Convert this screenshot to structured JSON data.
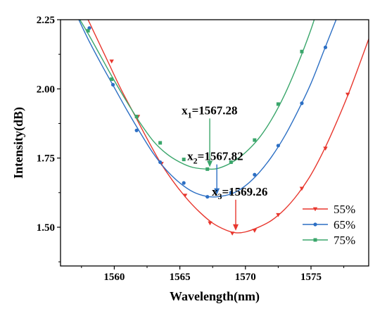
{
  "chart_data": {
    "type": "line",
    "xlabel": "Wavelength(nm)",
    "ylabel": "Intensity(dB)",
    "xlim": [
      1555.9,
      1579.4
    ],
    "ylim": [
      1.36,
      2.25
    ],
    "xticks": [
      {
        "value": 1560,
        "label": "1560"
      },
      {
        "value": 1565,
        "label": "1565"
      },
      {
        "value": 1570,
        "label": "1570"
      },
      {
        "value": 1575,
        "label": "1575"
      }
    ],
    "yticks": [
      {
        "value": 1.5,
        "label": "1.50"
      },
      {
        "value": 1.75,
        "label": "1.75"
      },
      {
        "value": 2.0,
        "label": "2.00"
      },
      {
        "value": 2.25,
        "label": "2.25"
      }
    ],
    "legend_position": "lower-right",
    "series": [
      {
        "name": "55%",
        "color": "#e8372e",
        "marker": "triangle-down",
        "minimum": {
          "x": 1569.26,
          "y": 1.48
        },
        "x": [
          1557.5,
          1558.5,
          1559.5,
          1560.5,
          1561.5,
          1562.5,
          1563.5,
          1564.5,
          1565.5,
          1566.5,
          1567.5,
          1568.5,
          1569.26,
          1570,
          1571,
          1572,
          1573,
          1574,
          1575,
          1576,
          1577,
          1578,
          1579.4
        ],
        "y": [
          2.3,
          2.2,
          2.1,
          2.0,
          1.91,
          1.82,
          1.735,
          1.665,
          1.605,
          1.555,
          1.515,
          1.49,
          1.48,
          1.483,
          1.5,
          1.525,
          1.565,
          1.62,
          1.69,
          1.78,
          1.885,
          2.0,
          2.18
        ],
        "markers_x": [
          1559.8,
          1561.8,
          1563.6,
          1565.4,
          1567.3,
          1569,
          1570.7,
          1572.5,
          1574.3,
          1576.1,
          1577.8
        ],
        "markers_y": [
          2.1,
          1.9,
          1.73,
          1.615,
          1.515,
          1.478,
          1.488,
          1.545,
          1.64,
          1.785,
          1.98
        ]
      },
      {
        "name": "65%",
        "color": "#2c6fc4",
        "marker": "circle",
        "minimum": {
          "x": 1567.82,
          "y": 1.61
        },
        "x": [
          1557,
          1558,
          1559,
          1560,
          1561,
          1562,
          1563,
          1564,
          1565,
          1566,
          1567,
          1567.82,
          1569,
          1570,
          1571,
          1572,
          1573,
          1574,
          1575,
          1576,
          1577,
          1577.6
        ],
        "y": [
          2.28,
          2.18,
          2.09,
          2.005,
          1.92,
          1.84,
          1.765,
          1.705,
          1.66,
          1.628,
          1.612,
          1.61,
          1.622,
          1.65,
          1.695,
          1.755,
          1.83,
          1.92,
          2.02,
          2.14,
          2.26,
          2.33
        ],
        "markers_x": [
          1558.1,
          1559.9,
          1561.7,
          1563.5,
          1565.3,
          1567.1,
          1568.9,
          1570.7,
          1572.5,
          1574.3,
          1576.1
        ],
        "markers_y": [
          2.22,
          2.015,
          1.85,
          1.735,
          1.66,
          1.61,
          1.625,
          1.69,
          1.795,
          1.948,
          2.15
        ]
      },
      {
        "name": "75%",
        "color": "#3aa66b",
        "marker": "square",
        "minimum": {
          "x": 1567.28,
          "y": 1.71
        },
        "x": [
          1557,
          1558,
          1559,
          1560,
          1561,
          1562,
          1563,
          1564,
          1565,
          1566,
          1567.28,
          1568,
          1569,
          1570,
          1571,
          1572,
          1573,
          1574,
          1575,
          1576,
          1576.6
        ],
        "y": [
          2.28,
          2.2,
          2.115,
          2.03,
          1.95,
          1.875,
          1.81,
          1.765,
          1.735,
          1.716,
          1.71,
          1.714,
          1.735,
          1.77,
          1.82,
          1.89,
          1.98,
          2.09,
          2.215,
          2.36,
          2.42
        ],
        "markers_x": [
          1558,
          1559.8,
          1561.7,
          1563.5,
          1565.3,
          1567.1,
          1568.9,
          1570.7,
          1572.5,
          1574.3
        ],
        "markers_y": [
          2.21,
          2.035,
          1.9,
          1.805,
          1.745,
          1.71,
          1.735,
          1.815,
          1.945,
          2.135
        ]
      }
    ],
    "annotations": [
      {
        "base": "x",
        "sub": "1",
        "value": "=1567.28",
        "series": 2
      },
      {
        "base": "x",
        "sub": "2",
        "value": "=1567.82",
        "series": 1
      },
      {
        "base": "x",
        "sub": "3",
        "value": "=1569.26",
        "series": 0
      }
    ]
  }
}
